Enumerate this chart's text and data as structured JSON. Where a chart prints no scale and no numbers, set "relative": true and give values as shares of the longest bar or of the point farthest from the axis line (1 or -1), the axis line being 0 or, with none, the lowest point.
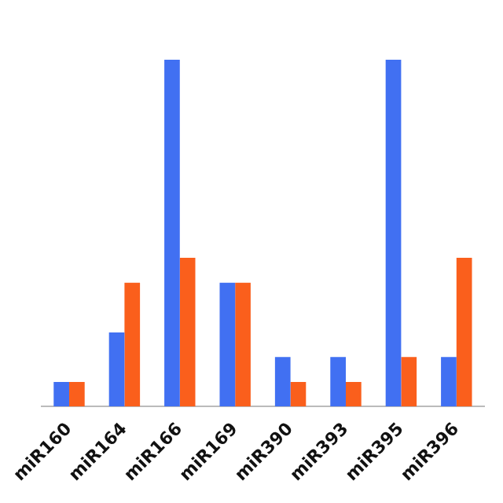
{
  "chart_data": {
    "type": "bar",
    "relative": true,
    "categories": [
      "miR160",
      "miR164",
      "miR166",
      "miR169",
      "miR390",
      "miR393",
      "miR395",
      "miR396"
    ],
    "series": [
      {
        "color": "#4170f2",
        "values": [
          0.071,
          0.214,
          1,
          0.357,
          0.143,
          0.143,
          1,
          0.143
        ]
      },
      {
        "color": "#fa5f1c",
        "values": [
          0.071,
          0.357,
          0.429,
          0.357,
          0.071,
          0.071,
          0.143,
          0.429
        ]
      }
    ],
    "grid": false,
    "legend": false
  }
}
